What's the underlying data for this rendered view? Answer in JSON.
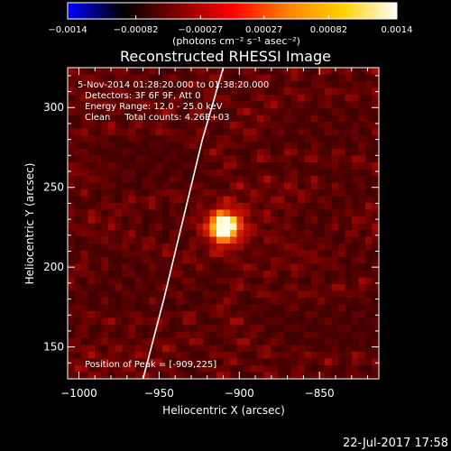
{
  "colorbar": {
    "colors": [
      "#0000ff",
      "#000000",
      "#800000",
      "#ff0000",
      "#ff8000",
      "#ffd000",
      "#ffffff"
    ],
    "ticks": [
      "-0.0014",
      "-0.00082",
      "-0.00027",
      "0.00027",
      "0.00082",
      "0.0014"
    ],
    "tick_values": [
      -0.0014,
      -0.00082,
      -0.00027,
      0.00027,
      0.00082,
      0.0014
    ],
    "range": [
      -0.0014,
      0.0014
    ],
    "units_label": "(photons cm⁻² s⁻¹ asec⁻²)"
  },
  "chart_data": {
    "type": "heatmap",
    "title": "Reconstructed RHESSI Image",
    "xlabel": "Heliocentric X (arcsec)",
    "ylabel": "Heliocentric Y (arcsec)",
    "xlim": [
      -1007,
      -813
    ],
    "ylim": [
      130,
      325
    ],
    "xticks": [
      -1000,
      -950,
      -900,
      -850
    ],
    "xtick_labels": [
      "−1000",
      "−950",
      "−900",
      "−850"
    ],
    "yticks": [
      150,
      200,
      250,
      300
    ],
    "ytick_labels": [
      "150",
      "200",
      "250",
      "300"
    ],
    "peak": {
      "x": -909,
      "y": 225,
      "value": 0.0014
    },
    "limb_curve": {
      "x": [
        -960,
        -947,
        -935,
        -923,
        -910
      ],
      "y": [
        130,
        180,
        230,
        280,
        325
      ]
    },
    "annotations": [
      "5-Nov-2014 01:28:20.000 to 01:38:20.000",
      "Detectors: 3F 6F 9F, Att 0",
      "Energy Range: 12.0 - 25.0 keV",
      "Clean     Total counts: 4.26E+03",
      "Position of Peak = [-909,225]"
    ]
  },
  "footer": {
    "timestamp": "22-Jul-2017 17:58"
  }
}
